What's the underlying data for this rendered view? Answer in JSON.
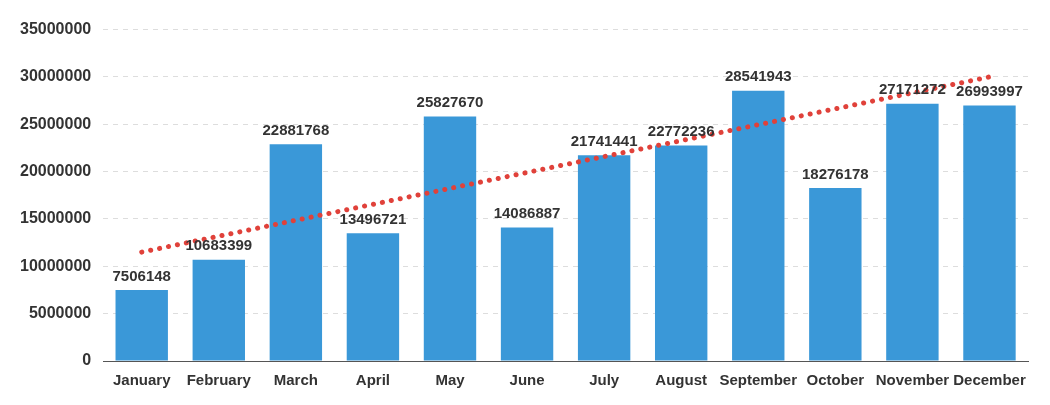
{
  "chart_data": {
    "type": "bar",
    "categories": [
      "January",
      "February",
      "March",
      "April",
      "May",
      "June",
      "July",
      "August",
      "September",
      "October",
      "November",
      "December"
    ],
    "series": [
      {
        "color": "#3a98d8",
        "values": [
          7506148,
          10683399,
          22881768,
          13496721,
          25827670,
          14086887,
          21741441,
          22772236,
          28541943,
          18276178,
          27171272,
          26993997
        ],
        "value_labels": [
          "7506148",
          "10683399",
          "22881768",
          "13496721",
          "25827670",
          "14086887",
          "21741441",
          "22772236",
          "28541943",
          "18276178",
          "27171272",
          "26993997"
        ]
      },
      {
        "type": "line",
        "color": "#e0413a",
        "x": [
          "January",
          "December"
        ],
        "values": [
          11500000,
          30000000
        ],
        "line_style": "dotted",
        "marker": "none"
      }
    ],
    "ylim": [
      0,
      35000000
    ],
    "yticks": [
      0,
      5000000,
      10000000,
      15000000,
      20000000,
      25000000,
      30000000,
      35000000
    ],
    "grid": "y",
    "legend": false
  }
}
